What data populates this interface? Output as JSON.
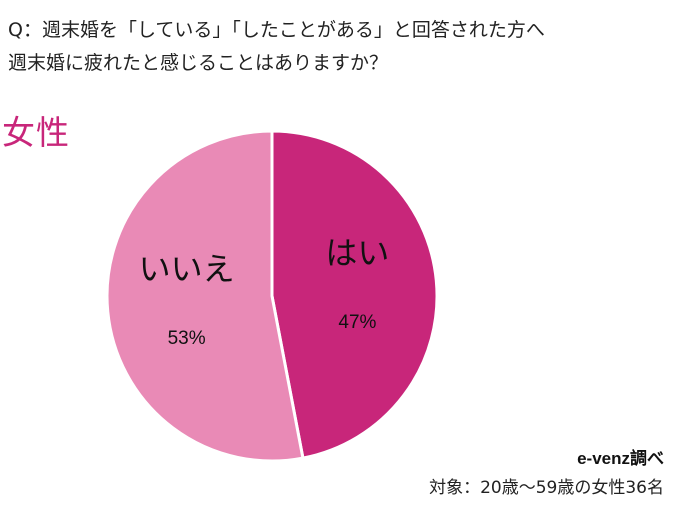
{
  "question": {
    "line1": "Q：週末婚を「している」「したことがある」と回答された方へ",
    "line2": "週末婚に疲れたと感じることはありますか？"
  },
  "subject": "女性",
  "chart_data": {
    "type": "pie",
    "title": "",
    "start_angle_deg": 0,
    "direction": "clockwise",
    "slices": [
      {
        "label": "はい",
        "value": 47,
        "value_label": "47%",
        "color": "#c8267a"
      },
      {
        "label": "いいえ",
        "value": 53,
        "value_label": "53%",
        "color": "#e98ab6"
      }
    ]
  },
  "credit": "e-venz調べ",
  "sample": "対象：20歳～59歳の女性36名"
}
